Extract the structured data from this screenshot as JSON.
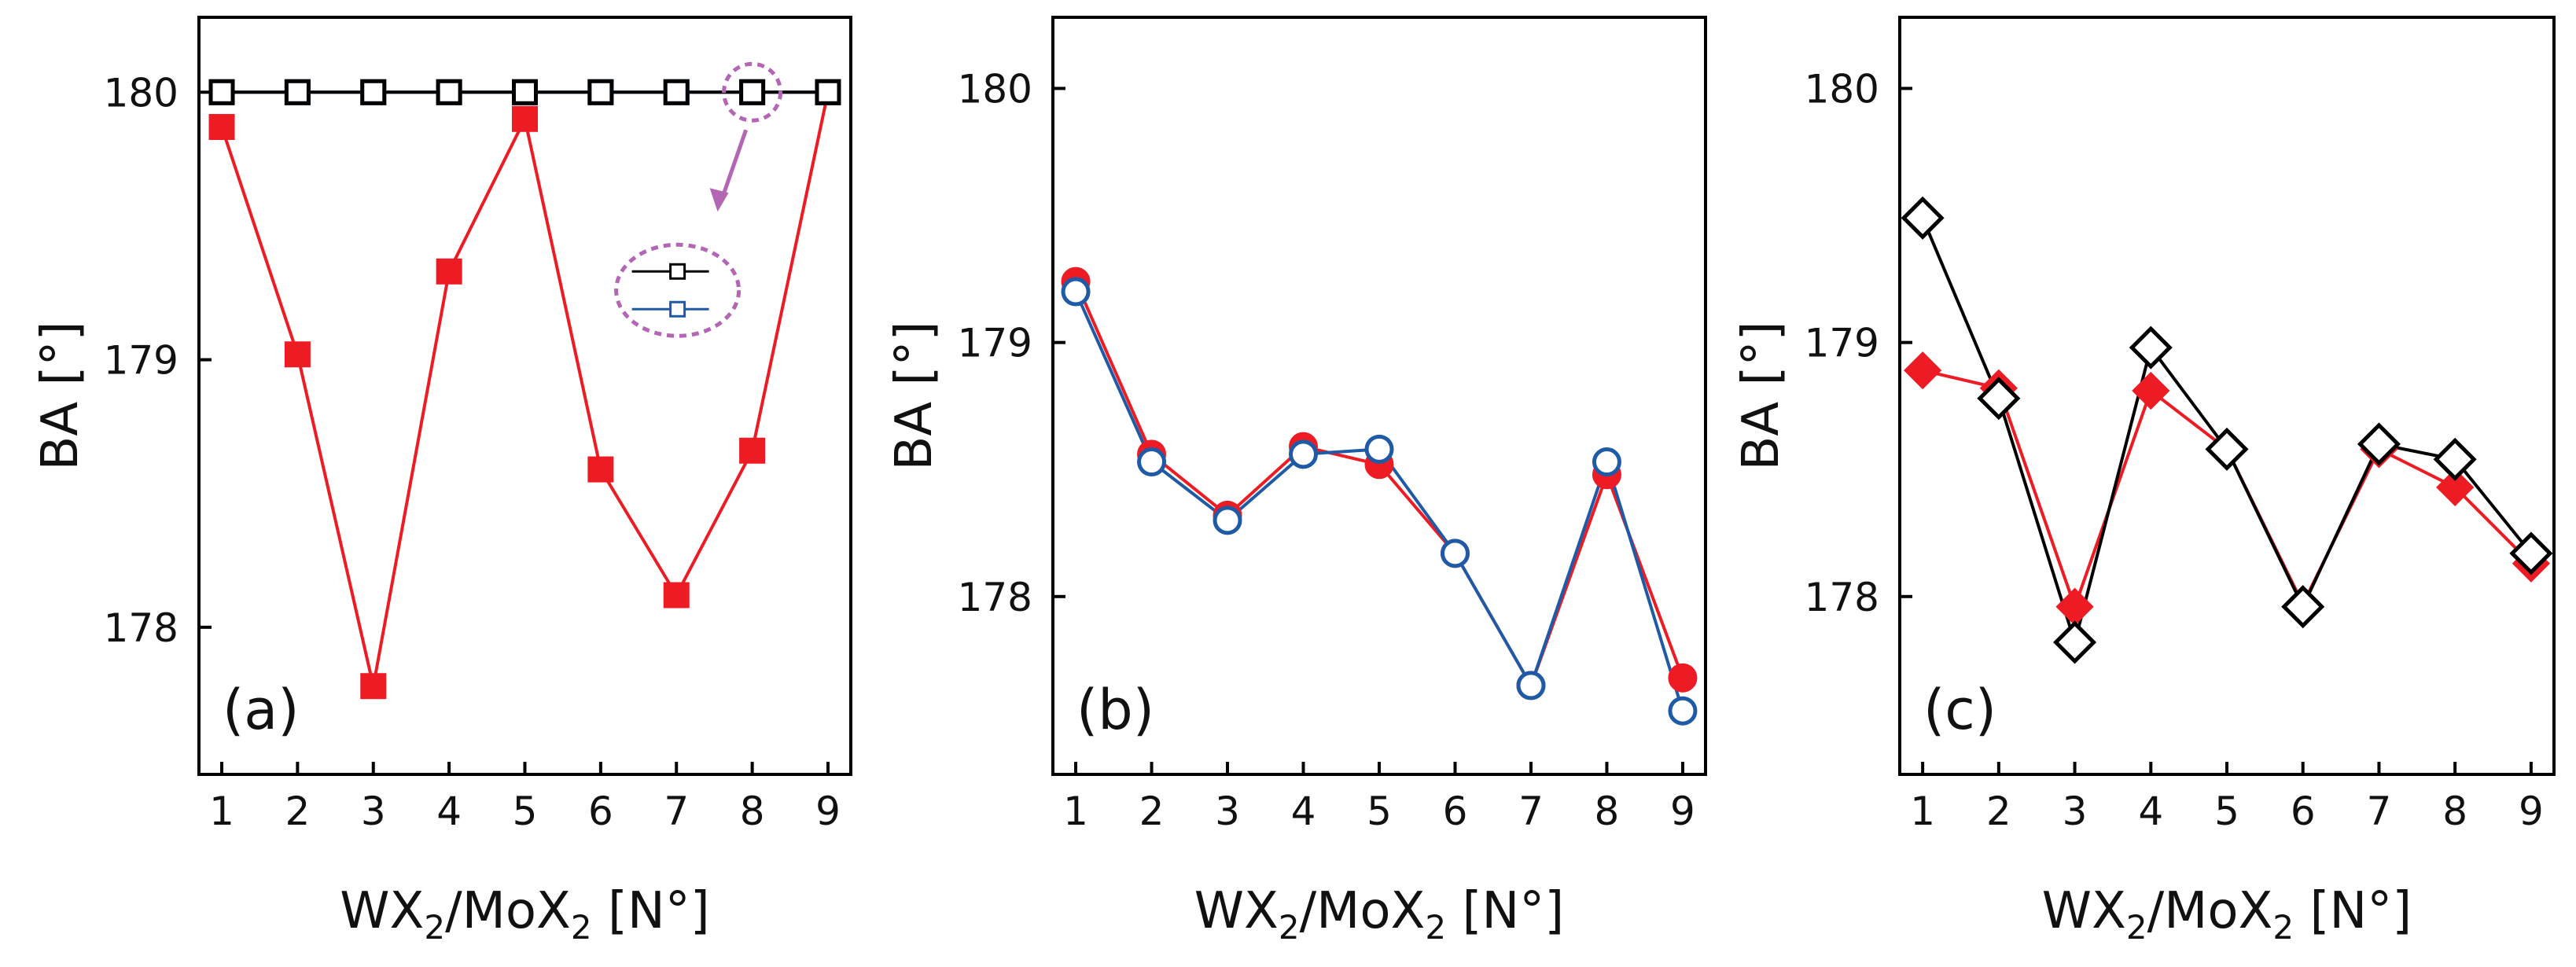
{
  "colors": {
    "red": "#ed1c24",
    "blue": "#1f5aa6",
    "black": "#000000",
    "inset_purple": "#b366b3"
  },
  "chart_data": [
    {
      "type": "line",
      "panel_label": "(a)",
      "xlabel": {
        "main": "WX",
        "sub1": "2",
        "mid": "/MoX",
        "sub2": "2",
        "tail": " [N°]"
      },
      "ylabel": "BA [°]",
      "x": [
        1,
        2,
        3,
        4,
        5,
        6,
        7,
        8,
        9
      ],
      "xticks": [
        "1",
        "2",
        "3",
        "4",
        "5",
        "6",
        "7",
        "8",
        "9"
      ],
      "yticks": [
        178,
        179,
        180
      ],
      "ylim": [
        177.45,
        180.28
      ],
      "series": [
        {
          "name": "red-filled-square",
          "color": "#ed1c24",
          "marker": "square-filled",
          "values": [
            179.87,
            179.02,
            177.78,
            179.33,
            179.9,
            178.59,
            178.12,
            178.66,
            180.0
          ]
        },
        {
          "name": "blue-open-square",
          "color": "#1f5aa6",
          "marker": "square-open",
          "values": [
            180.0,
            180.0,
            180.0,
            180.0,
            180.0,
            180.0,
            180.0,
            180.0,
            180.0
          ]
        },
        {
          "name": "black-open-square",
          "color": "#000000",
          "marker": "square-open",
          "values": [
            180.0,
            180.0,
            180.0,
            180.0,
            180.0,
            180.0,
            180.0,
            180.0,
            180.0
          ]
        }
      ],
      "inset": {
        "highlight_x": 8,
        "note": "overlapping black and blue open-square series"
      }
    },
    {
      "type": "line",
      "panel_label": "(b)",
      "xlabel": {
        "main": "WX",
        "sub1": "2",
        "mid": "/MoX",
        "sub2": "2",
        "tail": " [N°]"
      },
      "ylabel": "BA [°]",
      "x": [
        1,
        2,
        3,
        4,
        5,
        6,
        7,
        8,
        9
      ],
      "xticks": [
        "1",
        "2",
        "3",
        "4",
        "5",
        "6",
        "7",
        "8",
        "9"
      ],
      "yticks": [
        178,
        179,
        180
      ],
      "ylim": [
        177.3,
        180.28
      ],
      "series": [
        {
          "name": "red-filled-circle",
          "color": "#ed1c24",
          "marker": "circle-filled",
          "values": [
            179.24,
            178.56,
            178.32,
            178.59,
            178.52,
            178.17,
            177.65,
            178.48,
            177.68
          ]
        },
        {
          "name": "blue-open-circle",
          "color": "#1f5aa6",
          "marker": "circle-open",
          "values": [
            179.2,
            178.53,
            178.3,
            178.56,
            178.58,
            178.17,
            177.65,
            178.53,
            177.55
          ]
        }
      ]
    },
    {
      "type": "line",
      "panel_label": "(c)",
      "xlabel": {
        "main": "WX",
        "sub1": "2",
        "mid": "/MoX",
        "sub2": "2",
        "tail": " [N°]"
      },
      "ylabel": "BA [°]",
      "x": [
        1,
        2,
        3,
        4,
        5,
        6,
        7,
        8,
        9
      ],
      "xticks": [
        "1",
        "2",
        "3",
        "4",
        "5",
        "6",
        "7",
        "8",
        "9"
      ],
      "yticks": [
        178,
        179,
        180
      ],
      "ylim": [
        177.3,
        180.28
      ],
      "series": [
        {
          "name": "red-filled-diamond",
          "color": "#ed1c24",
          "marker": "diamond-filled",
          "values": [
            178.89,
            178.82,
            177.96,
            178.81,
            178.58,
            177.97,
            178.58,
            178.43,
            178.13
          ]
        },
        {
          "name": "black-open-diamond",
          "color": "#000000",
          "marker": "diamond-open",
          "values": [
            179.49,
            178.78,
            177.82,
            178.98,
            178.58,
            177.96,
            178.6,
            178.54,
            178.17
          ]
        }
      ]
    }
  ]
}
